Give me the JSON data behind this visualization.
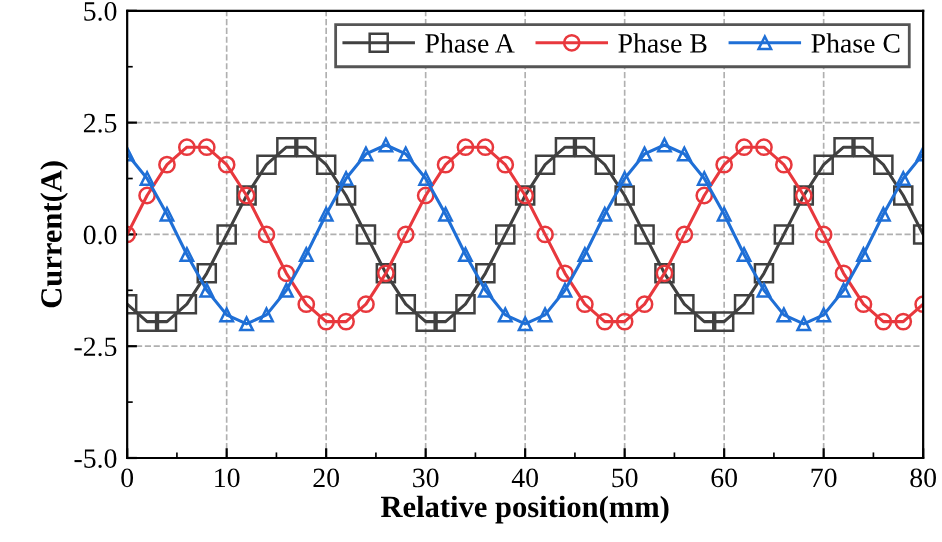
{
  "chart_data": {
    "type": "line",
    "xlabel": "Relative position(mm)",
    "ylabel": "Current(A)",
    "x": [
      0,
      2,
      4,
      6,
      8,
      10,
      12,
      14,
      16,
      18,
      20,
      22,
      24,
      26,
      28,
      30,
      32,
      34,
      36,
      38,
      40,
      42,
      44,
      46,
      48,
      50,
      52,
      54,
      56,
      58,
      60,
      62,
      64,
      66,
      68,
      70,
      72,
      74,
      76,
      78,
      80
    ],
    "series": [
      {
        "name": "Phase A",
        "color": "#404040",
        "marker": "square",
        "values": [
          -1.56,
          -1.95,
          -1.95,
          -1.56,
          -0.87,
          0,
          0.87,
          1.56,
          1.95,
          1.95,
          1.56,
          0.87,
          0,
          -0.87,
          -1.56,
          -1.95,
          -1.95,
          -1.56,
          -0.87,
          0,
          0.87,
          1.56,
          1.95,
          1.95,
          1.56,
          0.87,
          0,
          -0.87,
          -1.56,
          -1.95,
          -1.95,
          -1.56,
          -0.87,
          0,
          0.87,
          1.56,
          1.95,
          1.95,
          1.56,
          0.87,
          0
        ]
      },
      {
        "name": "Phase B",
        "color": "#e8383d",
        "marker": "circle",
        "values": [
          0,
          0.87,
          1.56,
          1.95,
          1.95,
          1.56,
          0.87,
          0,
          -0.87,
          -1.56,
          -1.95,
          -1.95,
          -1.56,
          -0.87,
          0,
          0.87,
          1.56,
          1.95,
          1.95,
          1.56,
          0.87,
          0,
          -0.87,
          -1.56,
          -1.95,
          -1.95,
          -1.56,
          -0.87,
          0,
          0.87,
          1.56,
          1.95,
          1.95,
          1.56,
          0.87,
          0,
          -0.87,
          -1.56,
          -1.95,
          -1.95,
          -1.56
        ]
      },
      {
        "name": "Phase C",
        "color": "#1f6fd6",
        "marker": "triangle",
        "values": [
          1.8,
          1.25,
          0.45,
          -0.45,
          -1.25,
          -1.8,
          -2,
          -1.8,
          -1.25,
          -0.45,
          0.45,
          1.25,
          1.8,
          2,
          1.8,
          1.25,
          0.45,
          -0.45,
          -1.25,
          -1.8,
          -2,
          -1.8,
          -1.25,
          -0.45,
          0.45,
          1.25,
          1.8,
          2,
          1.8,
          1.25,
          0.45,
          -0.45,
          -1.25,
          -1.8,
          -2,
          -1.8,
          -1.25,
          -0.45,
          0.45,
          1.25,
          1.8
        ]
      }
    ],
    "xlim": [
      0,
      80
    ],
    "xticks": [
      0,
      10,
      20,
      30,
      40,
      50,
      60,
      70,
      80
    ],
    "ylim": [
      -5,
      5
    ],
    "yticks": [
      {
        "value": -5,
        "label": "-5.0"
      },
      {
        "value": -2.5,
        "label": "-2.5"
      },
      {
        "value": 0,
        "label": "0.0"
      },
      {
        "value": 2.5,
        "label": "2.5"
      },
      {
        "value": 5,
        "label": "5.0"
      }
    ],
    "grid": true,
    "legend": "top right",
    "line_style": "solid"
  }
}
